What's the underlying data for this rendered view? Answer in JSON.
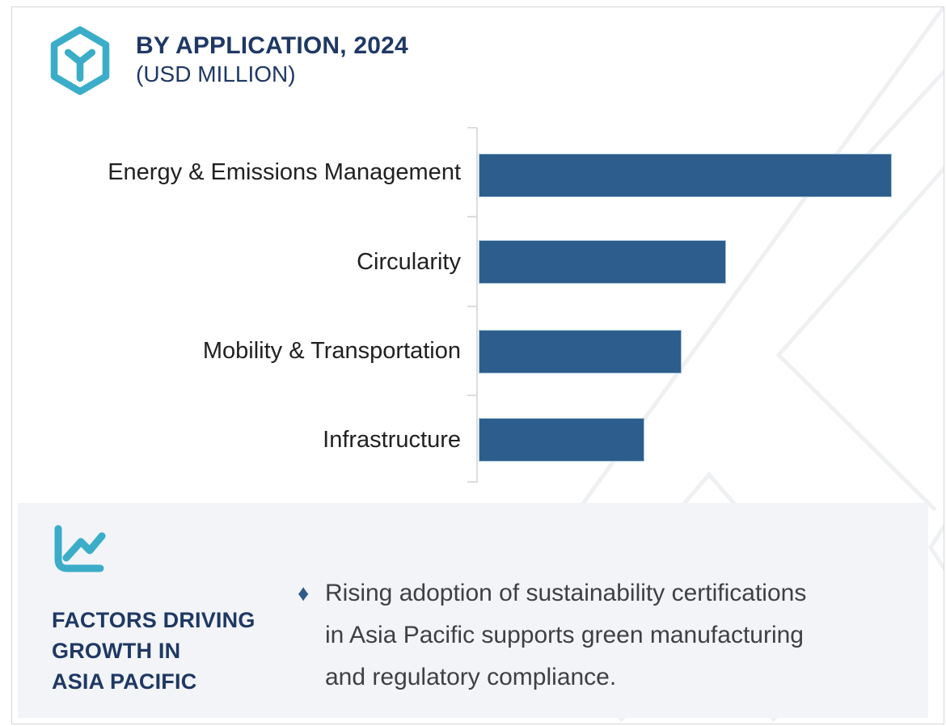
{
  "header": {
    "title_line1": "BY APPLICATION, 2024",
    "title_line2": "(USD MILLION)"
  },
  "chart_data": {
    "type": "bar",
    "orientation": "horizontal",
    "title": "BY APPLICATION, 2024 (USD MILLION)",
    "categories": [
      "Energy & Emissions Management",
      "Circularity",
      "Mobility & Transportation",
      "Infrastructure"
    ],
    "values": [
      511,
      306,
      251,
      205
    ],
    "value_note": "no numeric axis shown; values estimated from bar lengths in px",
    "xlim": [
      0,
      575
    ],
    "grid": false,
    "value_labels_shown": false,
    "bar_color": "#2c5d8c",
    "axis_color": "#dcdcdc"
  },
  "factors_panel": {
    "heading": "FACTORS DRIVING\nGROWTH IN\nASIA PACIFIC",
    "bullet_marker": "♦",
    "bullet_text": "Rising adoption of sustainability certifications\nin Asia Pacific supports green manufacturing\nand regulatory compliance."
  },
  "colors": {
    "accent_teal": "#3badc9",
    "navy": "#1f3864",
    "bar_blue": "#2c5d8c",
    "panel_bg": "#f2f4f8",
    "watermark_gray": "#eef0f2"
  }
}
